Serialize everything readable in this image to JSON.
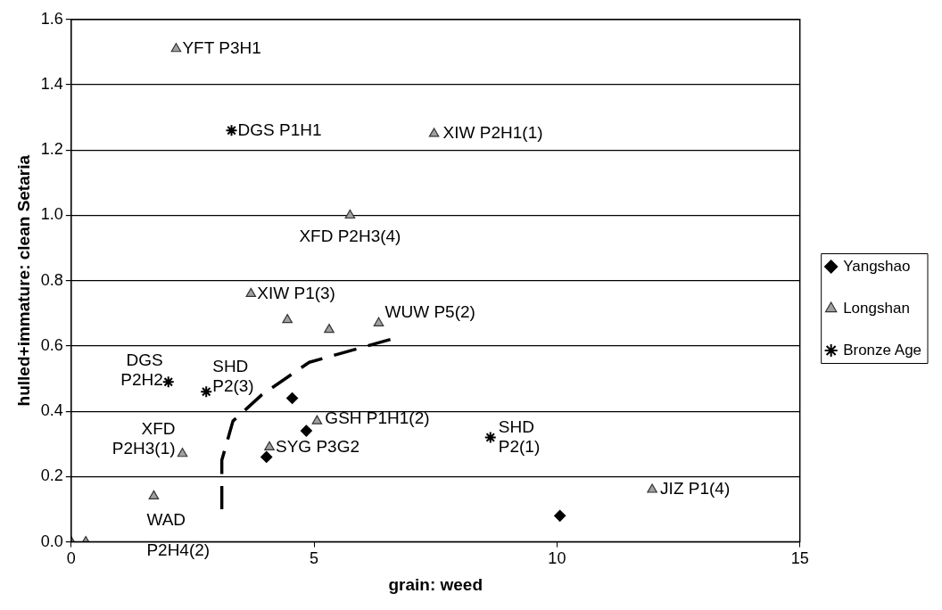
{
  "chart_data": {
    "type": "scatter",
    "xlabel": "grain: weed",
    "ylabel": "hulled+immature: clean Setaria",
    "xlim": [
      0,
      15
    ],
    "xticks": [
      0,
      5,
      10,
      15
    ],
    "ylim": [
      0,
      1.6
    ],
    "yticks": [
      {
        "value": 0,
        "label": "0.0"
      },
      {
        "value": 0.2,
        "label": "0.2"
      },
      {
        "value": 0.4,
        "label": "0.4"
      },
      {
        "value": 0.6,
        "label": "0.6"
      },
      {
        "value": 0.8,
        "label": "0.8"
      },
      {
        "value": 1.0,
        "label": "1.0"
      },
      {
        "value": 1.2,
        "label": "1.2"
      },
      {
        "value": 1.4,
        "label": "1.4"
      },
      {
        "value": 1.6,
        "label": "1.6"
      }
    ],
    "grid": "y",
    "legend": "right",
    "series": [
      {
        "name": "Yangshao",
        "color": "#000000",
        "marker": "diamond",
        "x": [
          4.55,
          4.84,
          4.02,
          10.06
        ],
        "values": [
          0.44,
          0.34,
          0.26,
          0.08
        ]
      },
      {
        "name": "Longshan",
        "color": "#a0a0a0",
        "marker": "triangle",
        "x": [
          2.16,
          7.47,
          5.74,
          3.7,
          4.45,
          5.31,
          6.33,
          5.06,
          4.08,
          2.29,
          1.7,
          11.96,
          0,
          0.3
        ],
        "values": [
          1.51,
          1.25,
          1.0,
          0.76,
          0.68,
          0.65,
          0.67,
          0.37,
          0.29,
          0.27,
          0.14,
          0.16,
          0,
          0
        ]
      },
      {
        "name": "Bronze Age",
        "color": "#000000",
        "marker": "cross",
        "x": [
          3.3,
          2.0,
          2.78,
          8.63
        ],
        "values": [
          1.26,
          0.49,
          0.46,
          0.32
        ]
      },
      {
        "type": "line",
        "color": "#000000",
        "line_style": "dashed",
        "marker": "none",
        "x": [
          3.1,
          3.1,
          3.33,
          3.92,
          4.9,
          6.57
        ],
        "values": [
          0.1,
          0.25,
          0.37,
          0.45,
          0.55,
          0.62
        ]
      }
    ],
    "annotations": [
      {
        "text": "YFT P3H1",
        "x": 2.16,
        "y": 1.51
      },
      {
        "text": "DGS P1H1",
        "x": 3.3,
        "y": 1.26
      },
      {
        "text": "XIW P2H1(1)",
        "x": 7.47,
        "y": 1.25
      },
      {
        "text": "XFD P2H3(4)",
        "x": 5.74,
        "y": 1.0
      },
      {
        "text": "XIW P1(3)",
        "x": 3.7,
        "y": 0.76
      },
      {
        "text": "WUW P5(2)",
        "x": 6.33,
        "y": 0.67
      },
      {
        "text": "DGS\nP2H2",
        "x": 2.0,
        "y": 0.49
      },
      {
        "text": "SHD\nP2(3)",
        "x": 2.78,
        "y": 0.46
      },
      {
        "text": "XFD\nP2H3(1)",
        "x": 2.29,
        "y": 0.27
      },
      {
        "text": "GSH P1H1(2)",
        "x": 5.06,
        "y": 0.37
      },
      {
        "text": "SYG P3G2",
        "x": 4.08,
        "y": 0.29
      },
      {
        "text": "WAD\nP2H4(2)",
        "x": 1.7,
        "y": 0.14
      },
      {
        "text": "SHD\nP2(1)",
        "x": 8.63,
        "y": 0.32
      },
      {
        "text": "JIZ P1(4)",
        "x": 11.96,
        "y": 0.16
      }
    ]
  }
}
